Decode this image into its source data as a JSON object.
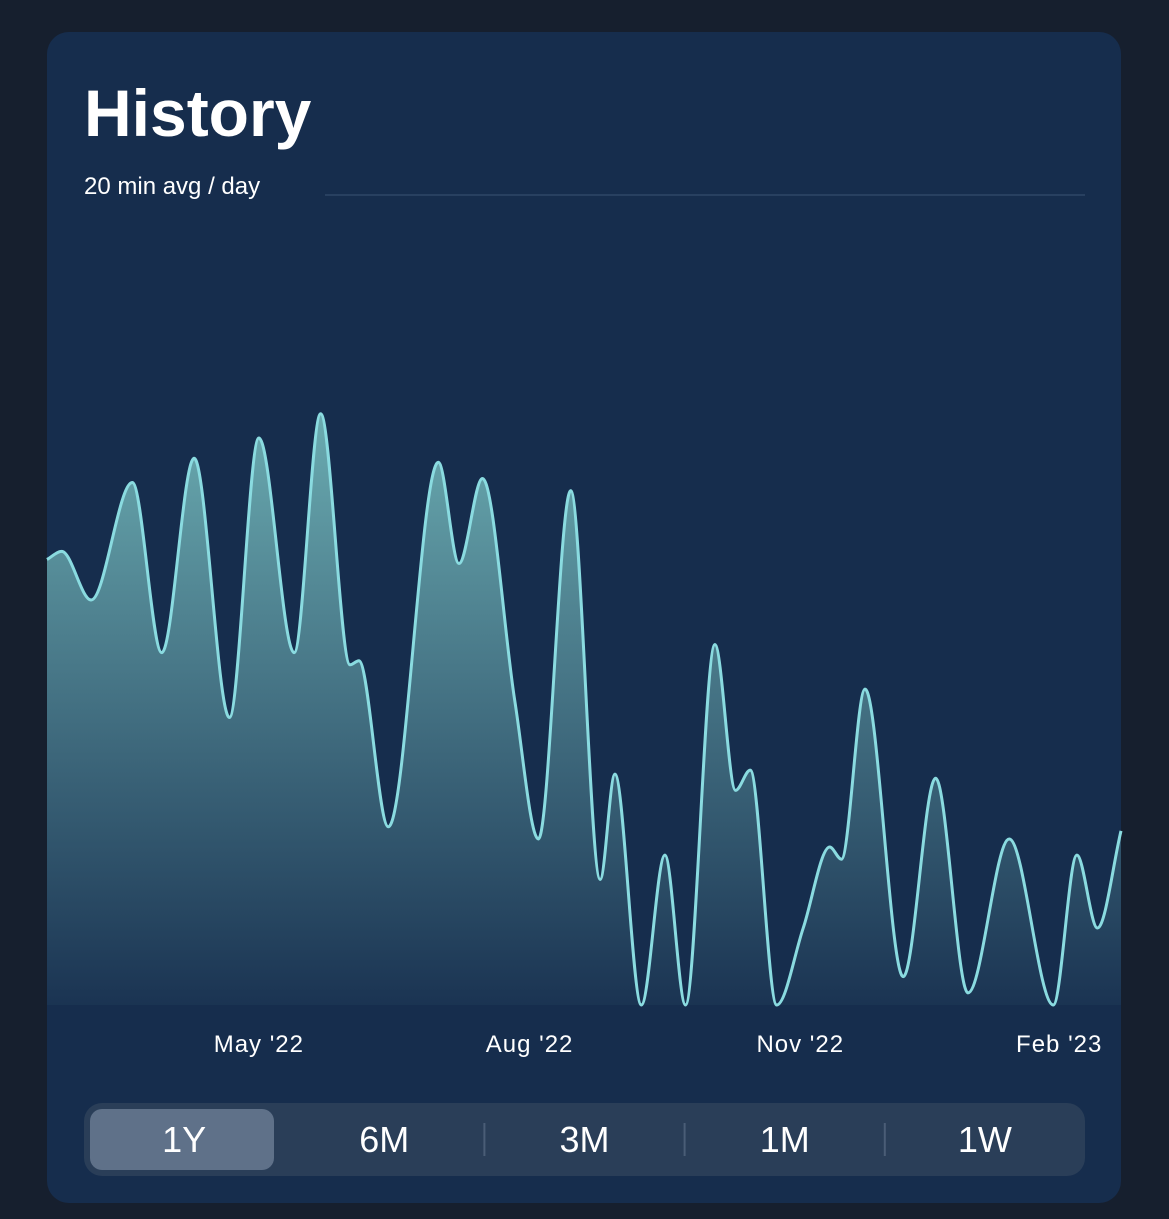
{
  "header": {
    "title": "History",
    "subtitle": "20 min avg / day"
  },
  "chart_data": {
    "type": "area",
    "x": [
      0,
      5,
      15,
      29,
      39,
      50,
      62,
      72,
      84,
      93,
      103,
      106,
      116,
      133,
      140,
      148,
      159,
      167,
      178,
      188,
      193,
      202,
      210,
      217,
      227,
      234,
      239,
      248,
      257,
      266,
      270,
      278,
      291,
      302,
      313,
      327,
      342,
      350,
      357,
      365
    ],
    "series": [
      {
        "color": "#8adbe0",
        "values": [
          11.0,
          11.2,
          10.0,
          12.9,
          8.7,
          13.5,
          7.1,
          14.0,
          8.7,
          14.6,
          8.4,
          8.5,
          4.4,
          13.4,
          10.9,
          13.0,
          7.5,
          4.1,
          12.7,
          3.1,
          5.7,
          0,
          3.7,
          0,
          8.9,
          5.3,
          5.8,
          0,
          1.9,
          3.9,
          3.6,
          7.8,
          0.7,
          5.6,
          0.3,
          4.1,
          0,
          3.7,
          1.9,
          4.3
        ]
      }
    ],
    "xlim": [
      0,
      365
    ],
    "xticks": [
      {
        "value": 72,
        "label": "May '22"
      },
      {
        "value": 164,
        "label": "Aug '22"
      },
      {
        "value": 256,
        "label": "Nov '22"
      },
      {
        "value": 344,
        "label": "Feb '23"
      }
    ],
    "ylim": [
      0,
      20
    ]
  },
  "range_selector": {
    "options": [
      "1Y",
      "6M",
      "3M",
      "1M",
      "1W"
    ],
    "selected": 0
  }
}
